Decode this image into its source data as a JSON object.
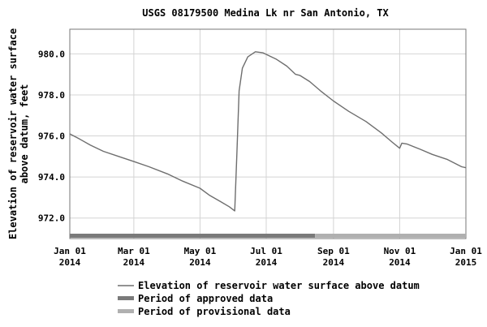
{
  "chart_data": {
    "type": "line",
    "title": "USGS 08179500 Medina Lk nr San Antonio, TX",
    "ylabel_line1": "Elevation of reservoir water surface",
    "ylabel_line2": "above datum, feet",
    "xlabel": "",
    "ylim": [
      971.0,
      981.2
    ],
    "xlim": [
      "2014-01-01",
      "2015-01-01"
    ],
    "grid": true,
    "legend_position": "bottom",
    "y_ticks": [
      {
        "value": 972.0,
        "label": "972.0"
      },
      {
        "value": 974.0,
        "label": "974.0"
      },
      {
        "value": 976.0,
        "label": "976.0"
      },
      {
        "value": 978.0,
        "label": "978.0"
      },
      {
        "value": 980.0,
        "label": "980.0"
      }
    ],
    "x_ticks": [
      {
        "date": "2014-01-01",
        "label1": "Jan 01",
        "label2": "2014"
      },
      {
        "date": "2014-03-01",
        "label1": "Mar 01",
        "label2": "2014"
      },
      {
        "date": "2014-05-01",
        "label1": "May 01",
        "label2": "2014"
      },
      {
        "date": "2014-07-01",
        "label1": "Jul 01",
        "label2": "2014"
      },
      {
        "date": "2014-09-01",
        "label1": "Sep 01",
        "label2": "2014"
      },
      {
        "date": "2014-11-01",
        "label1": "Nov 01",
        "label2": "2014"
      },
      {
        "date": "2015-01-01",
        "label1": "Jan 01",
        "label2": "2015"
      }
    ],
    "series": [
      {
        "name": "Elevation of reservoir water surface above datum",
        "color": "#6e6e6e",
        "points": [
          [
            "2014-01-01",
            976.1
          ],
          [
            "2014-01-10",
            975.85
          ],
          [
            "2014-01-20",
            975.55
          ],
          [
            "2014-02-01",
            975.25
          ],
          [
            "2014-02-15",
            975.0
          ],
          [
            "2014-03-01",
            974.75
          ],
          [
            "2014-03-15",
            974.5
          ],
          [
            "2014-04-01",
            974.15
          ],
          [
            "2014-04-15",
            973.8
          ],
          [
            "2014-05-01",
            973.45
          ],
          [
            "2014-05-10",
            973.1
          ],
          [
            "2014-05-20",
            972.8
          ],
          [
            "2014-05-28",
            972.55
          ],
          [
            "2014-06-02",
            972.35
          ],
          [
            "2014-06-04",
            975.2
          ],
          [
            "2014-06-06",
            978.2
          ],
          [
            "2014-06-09",
            979.3
          ],
          [
            "2014-06-14",
            979.85
          ],
          [
            "2014-06-21",
            980.1
          ],
          [
            "2014-06-28",
            980.05
          ],
          [
            "2014-07-10",
            979.75
          ],
          [
            "2014-07-20",
            979.4
          ],
          [
            "2014-07-28",
            979.0
          ],
          [
            "2014-08-01",
            978.95
          ],
          [
            "2014-08-10",
            978.65
          ],
          [
            "2014-08-20",
            978.2
          ],
          [
            "2014-09-01",
            977.7
          ],
          [
            "2014-09-15",
            977.2
          ],
          [
            "2014-10-01",
            976.7
          ],
          [
            "2014-10-15",
            976.15
          ],
          [
            "2014-10-25",
            975.7
          ],
          [
            "2014-11-01",
            975.4
          ],
          [
            "2014-11-03",
            975.65
          ],
          [
            "2014-11-08",
            975.6
          ],
          [
            "2014-11-20",
            975.35
          ],
          [
            "2014-12-01",
            975.1
          ],
          [
            "2014-12-15",
            974.85
          ],
          [
            "2014-12-28",
            974.5
          ],
          [
            "2015-01-01",
            974.45
          ]
        ]
      }
    ],
    "legend": [
      {
        "label": "Elevation of reservoir water surface above datum",
        "color": "#6e6e6e",
        "style": "line"
      },
      {
        "label": "Period of approved data",
        "color": "#7a7a7a",
        "style": "bar"
      },
      {
        "label": "Period of provisional data",
        "color": "#b0b0b0",
        "style": "bar"
      }
    ],
    "approval_bar": {
      "approved": [
        "2014-01-01",
        "2014-08-15"
      ],
      "provisional": [
        "2014-08-15",
        "2015-01-01"
      ]
    }
  }
}
